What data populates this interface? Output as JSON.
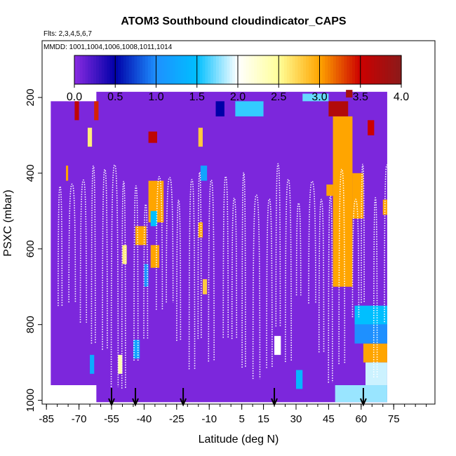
{
  "chart_data": {
    "type": "heatmap",
    "title": "ATOM3 Southbound cloudindicator_CAPS",
    "subtitle_flights": "Flts: 2,3,4,5,6,7",
    "subtitle_dates": "MMDD: 1001,1004,1006,1008,1011,1014",
    "xlabel": "Latitude (deg N)",
    "ylabel": "PSXC (mbar)",
    "xlim": [
      -87,
      94
    ],
    "ylim": [
      1010,
      50
    ],
    "x_ticks": [
      -85,
      -70,
      -55,
      -40,
      -25,
      -10,
      5,
      15,
      30,
      45,
      60,
      75
    ],
    "x_tick_labels": [
      "-85",
      "-70",
      "-55",
      "-40",
      "-25",
      "-10",
      "5",
      "15",
      "30",
      "45",
      "60",
      "75"
    ],
    "y_ticks": [
      200,
      400,
      600,
      800,
      1000
    ],
    "y_tick_labels": [
      "200",
      "400",
      "600",
      "800",
      "1000"
    ],
    "colorbar": {
      "range": [
        0.0,
        4.0
      ],
      "ticks": [
        0.0,
        0.5,
        1.0,
        1.5,
        2.0,
        2.5,
        3.0,
        3.5,
        4.0
      ],
      "tick_labels": [
        "0.0",
        "0.5",
        "1.0",
        "1.5",
        "2.0",
        "2.5",
        "3.0",
        "3.5",
        "4.0"
      ],
      "stops": [
        "#8a2be2",
        "#0000a8",
        "#1e90ff",
        "#00bfff",
        "#ffffff",
        "#ffff99",
        "#ffa500",
        "#cc0000",
        "#8b1a1a"
      ]
    },
    "profile_markers_lat": [
      -55,
      -44,
      -22,
      20,
      61
    ],
    "cells": [
      {
        "lat0": -83,
        "lat1": 68,
        "p0": 210,
        "p1": 960,
        "v": 0.05
      },
      {
        "lat0": -62,
        "lat1": 72,
        "p0": 185,
        "p1": 1005,
        "v": 0.05
      },
      {
        "lat0": -72,
        "lat1": -70,
        "p0": 210,
        "p1": 260,
        "v": 3.6
      },
      {
        "lat0": -63,
        "lat1": -61,
        "p0": 210,
        "p1": 260,
        "v": 3.4
      },
      {
        "lat0": -76,
        "lat1": -75,
        "p0": 380,
        "p1": 420,
        "v": 3.0
      },
      {
        "lat0": -66,
        "lat1": -64,
        "p0": 280,
        "p1": 330,
        "v": 2.6
      },
      {
        "lat0": -50,
        "lat1": -48,
        "p0": 590,
        "p1": 640,
        "v": 2.6
      },
      {
        "lat0": -44,
        "lat1": -39,
        "p0": 540,
        "p1": 590,
        "v": 3.0
      },
      {
        "lat0": -40,
        "lat1": -38,
        "p0": 640,
        "p1": 700,
        "v": 1.0
      },
      {
        "lat0": -38,
        "lat1": -34,
        "p0": 290,
        "p1": 320,
        "v": 3.6
      },
      {
        "lat0": -38,
        "lat1": -31,
        "p0": 420,
        "p1": 530,
        "v": 3.0
      },
      {
        "lat0": -37,
        "lat1": -33,
        "p0": 590,
        "p1": 650,
        "v": 3.0
      },
      {
        "lat0": -37,
        "lat1": -34,
        "p0": 500,
        "p1": 540,
        "v": 1.5
      },
      {
        "lat0": -45,
        "lat1": -42,
        "p0": 840,
        "p1": 890,
        "v": 1.2
      },
      {
        "lat0": -52,
        "lat1": -50,
        "p0": 880,
        "p1": 930,
        "v": 2.4
      },
      {
        "lat0": -65,
        "lat1": -63,
        "p0": 880,
        "p1": 930,
        "v": 1.3
      },
      {
        "lat0": -15,
        "lat1": -13,
        "p0": 280,
        "p1": 330,
        "v": 2.8
      },
      {
        "lat0": -15,
        "lat1": -13,
        "p0": 530,
        "p1": 570,
        "v": 3.0
      },
      {
        "lat0": -13,
        "lat1": -11,
        "p0": 680,
        "p1": 720,
        "v": 2.8
      },
      {
        "lat0": -14,
        "lat1": -11,
        "p0": 380,
        "p1": 420,
        "v": 1.2
      },
      {
        "lat0": -7,
        "lat1": -3,
        "p0": 210,
        "p1": 250,
        "v": 0.5
      },
      {
        "lat0": 2,
        "lat1": 15,
        "p0": 210,
        "p1": 250,
        "v": 1.6
      },
      {
        "lat0": 20,
        "lat1": 23,
        "p0": 830,
        "p1": 880,
        "v": 2.0
      },
      {
        "lat0": 30,
        "lat1": 33,
        "p0": 920,
        "p1": 970,
        "v": 1.4
      },
      {
        "lat0": 33,
        "lat1": 45,
        "p0": 190,
        "p1": 210,
        "v": 1.7
      },
      {
        "lat0": 45,
        "lat1": 54,
        "p0": 210,
        "p1": 250,
        "v": 3.7
      },
      {
        "lat0": 53,
        "lat1": 56,
        "p0": 180,
        "p1": 200,
        "v": 3.8
      },
      {
        "lat0": 47,
        "lat1": 56,
        "p0": 250,
        "p1": 700,
        "v": 3.0
      },
      {
        "lat0": 44,
        "lat1": 47,
        "p0": 430,
        "p1": 460,
        "v": 3.0
      },
      {
        "lat0": 56,
        "lat1": 61,
        "p0": 400,
        "p1": 520,
        "v": 3.0
      },
      {
        "lat0": 63,
        "lat1": 66,
        "p0": 260,
        "p1": 300,
        "v": 3.5
      },
      {
        "lat0": 61,
        "lat1": 72,
        "p0": 850,
        "p1": 900,
        "v": 3.0
      },
      {
        "lat0": 57,
        "lat1": 72,
        "p0": 750,
        "p1": 800,
        "v": 1.5
      },
      {
        "lat0": 57,
        "lat1": 72,
        "p0": 800,
        "p1": 850,
        "v": 1.0
      },
      {
        "lat0": 62,
        "lat1": 72,
        "p0": 900,
        "p1": 960,
        "v": 1.9
      },
      {
        "lat0": 48,
        "lat1": 72,
        "p0": 960,
        "p1": 1005,
        "v": 1.8
      },
      {
        "lat0": 70,
        "lat1": 72,
        "p0": 470,
        "p1": 510,
        "v": 3.0
      }
    ]
  }
}
